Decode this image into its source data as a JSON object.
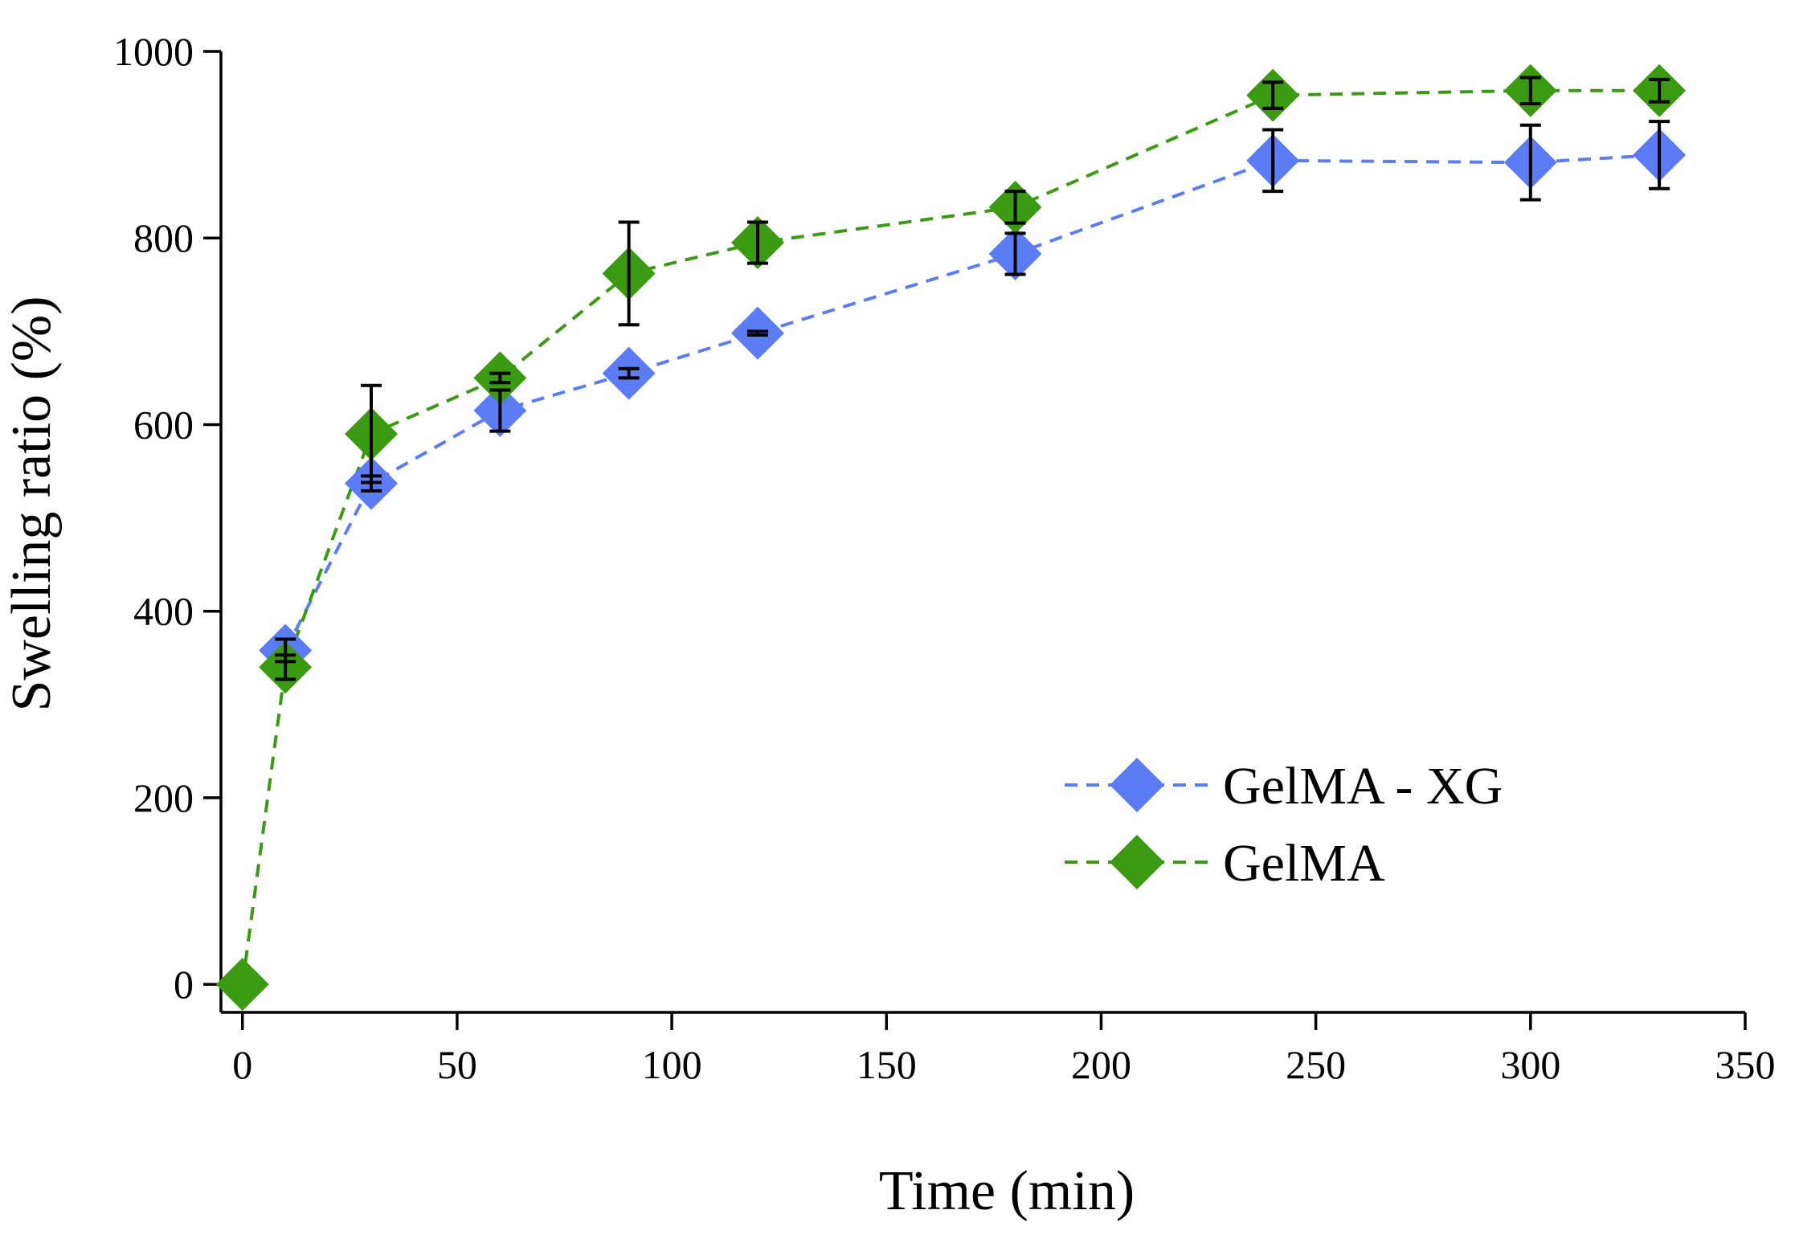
{
  "chart_data": {
    "type": "line",
    "xlabel": "Time (min)",
    "ylabel": "Swelling ratio (%)",
    "xlim": [
      -5,
      350
    ],
    "ylim": [
      -30,
      1000
    ],
    "xticks": [
      0,
      50,
      100,
      150,
      200,
      250,
      300,
      350
    ],
    "yticks": [
      0,
      200,
      400,
      600,
      800,
      1000
    ],
    "grid": false,
    "legend_position": "bottom-right",
    "series": [
      {
        "name": "GelMA - XG",
        "color": "#5b7cf4",
        "marker": "diamond",
        "line_style": "dashed",
        "x": [
          10,
          30,
          60,
          90,
          120,
          180,
          240,
          300,
          330
        ],
        "y": [
          358,
          537,
          615,
          655,
          698,
          783,
          883,
          881,
          889
        ],
        "error": [
          12,
          8,
          22,
          5,
          2,
          22,
          33,
          40,
          36
        ]
      },
      {
        "name": "GelMA",
        "color": "#3a9a12",
        "marker": "diamond",
        "line_style": "dashed",
        "x": [
          0,
          10,
          30,
          60,
          90,
          120,
          180,
          240,
          300,
          330
        ],
        "y": [
          0,
          340,
          590,
          650,
          762,
          795,
          833,
          953,
          958,
          958
        ],
        "error": [
          0,
          13,
          52,
          5,
          55,
          22,
          17,
          14,
          14,
          12
        ]
      }
    ]
  }
}
